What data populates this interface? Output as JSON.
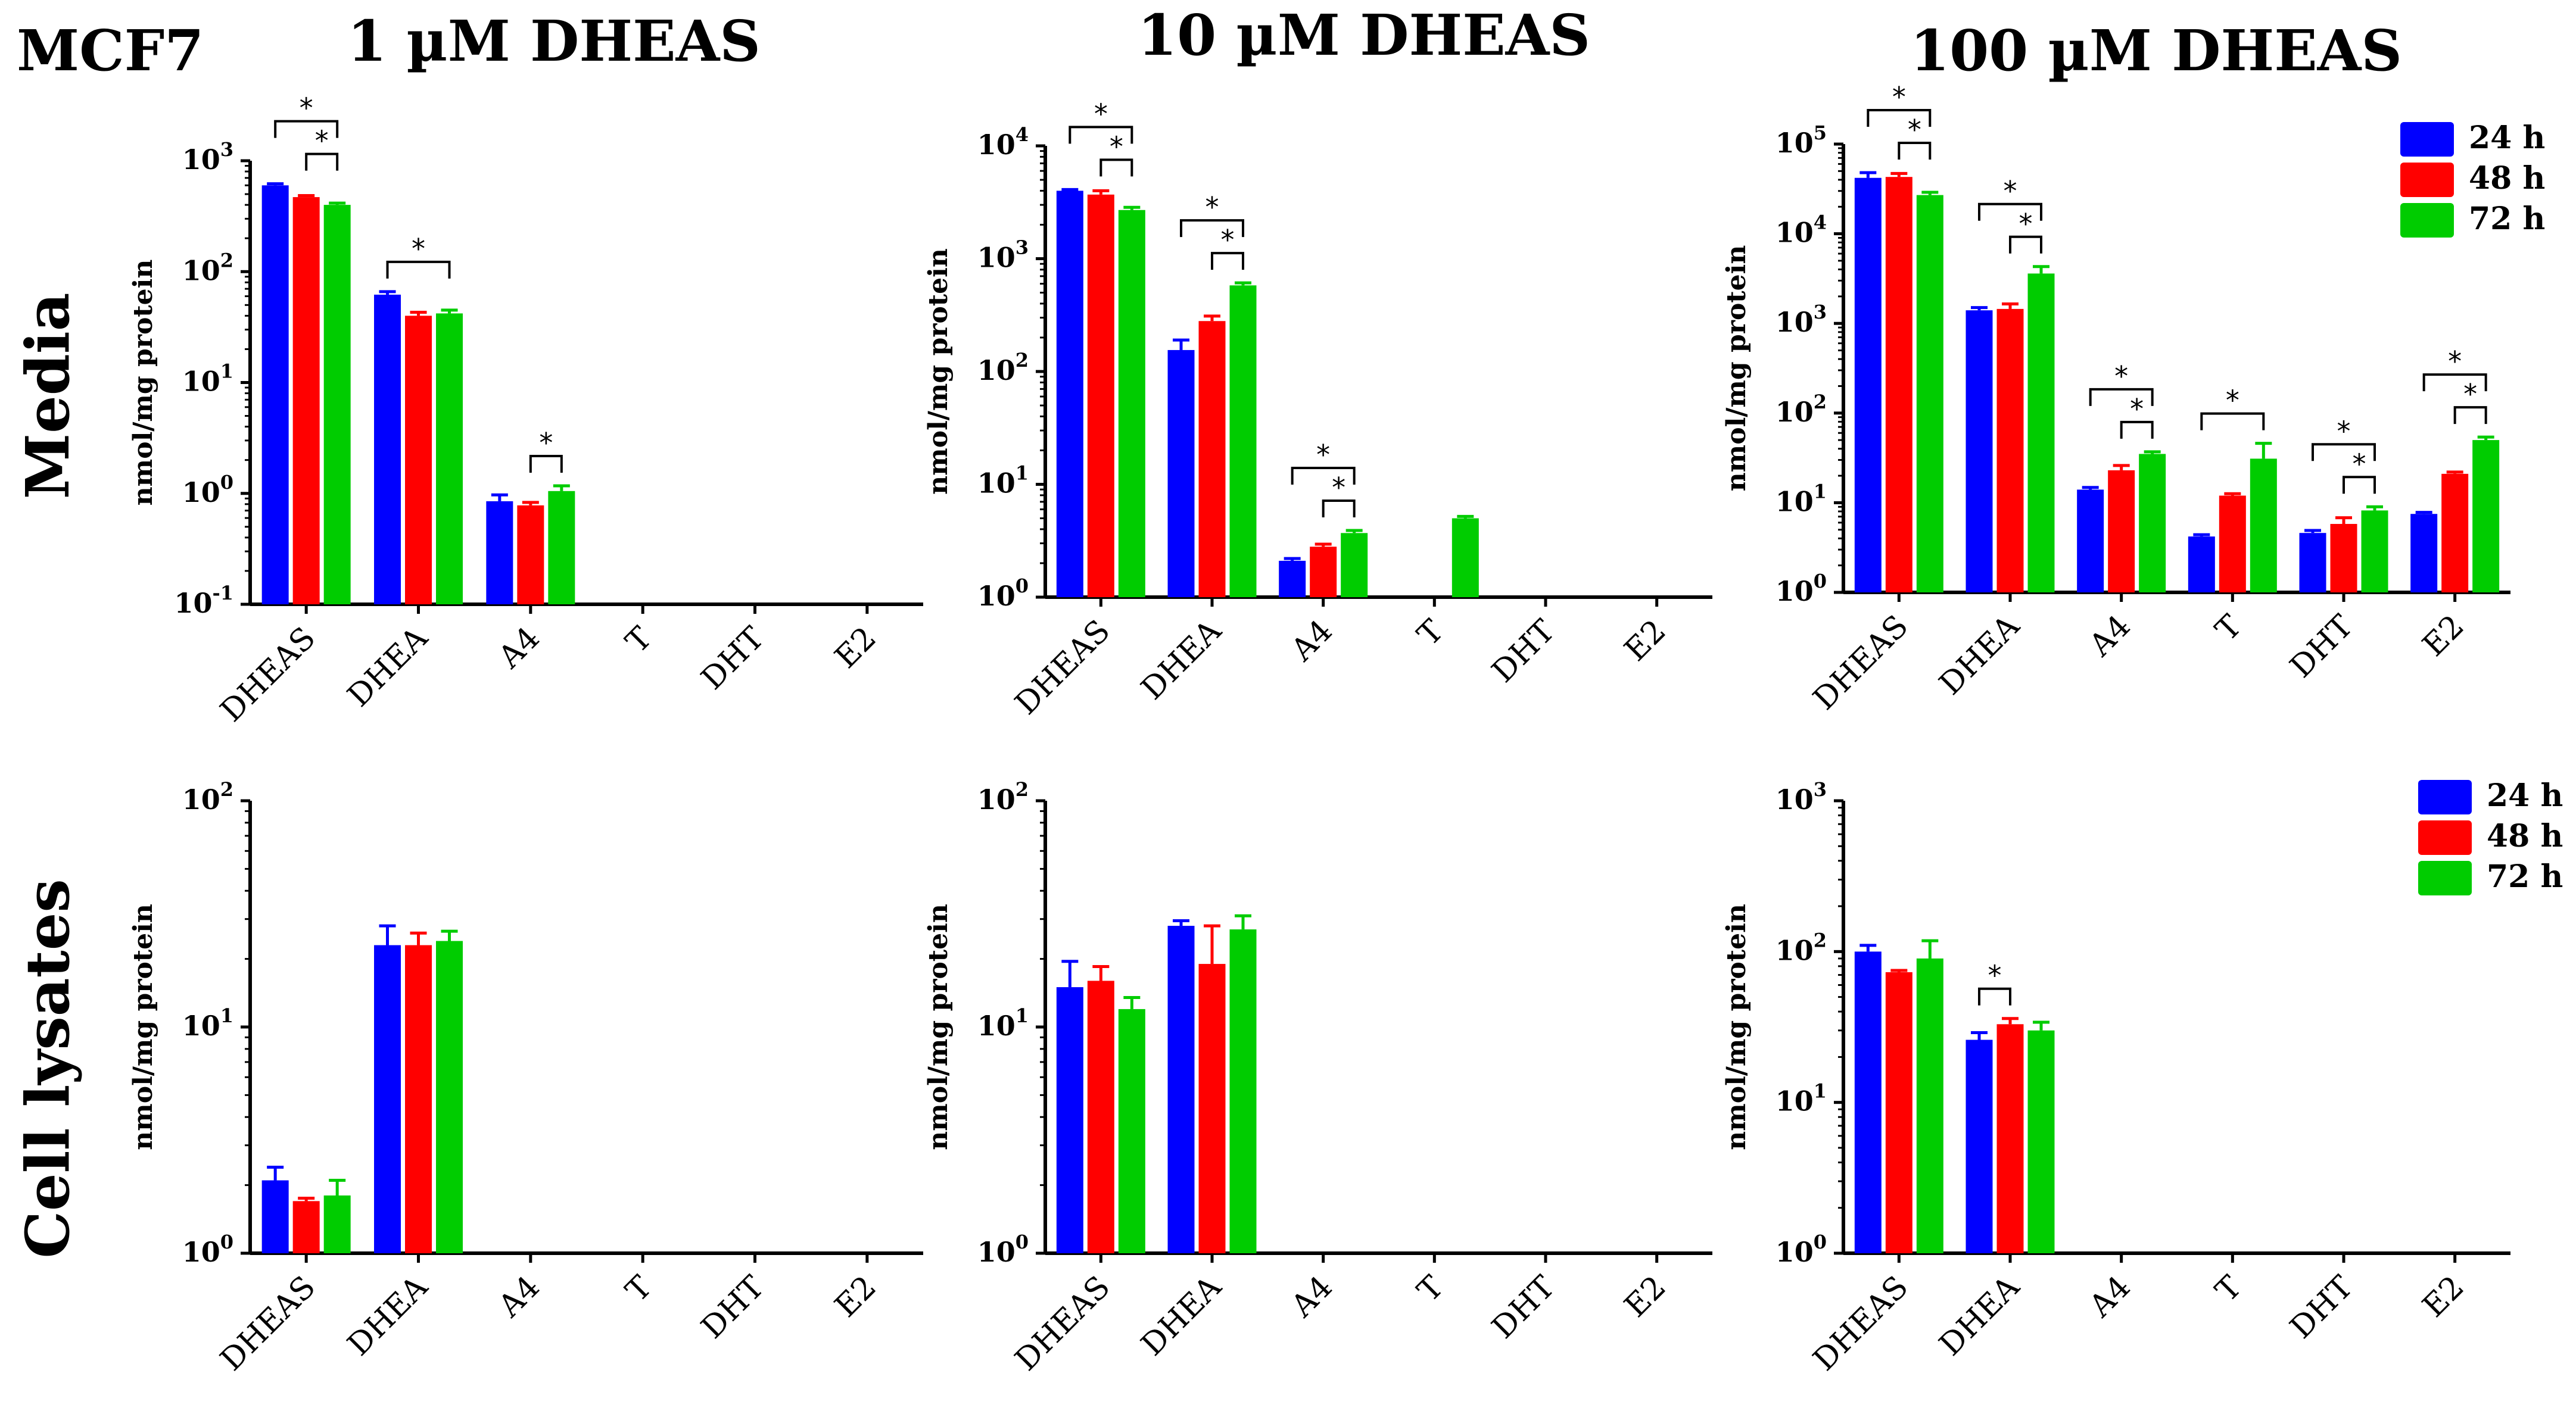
{
  "figure": {
    "cell_line": "MCF7",
    "row_labels": [
      "Media",
      "Cell lysates"
    ],
    "legend": [
      {
        "label": "24 h",
        "color": "#0000ff"
      },
      {
        "label": "48 h",
        "color": "#ff0000"
      },
      {
        "label": "72 h",
        "color": "#00cc00"
      }
    ]
  },
  "chart_data": [
    {
      "type": "bar",
      "title": "1 µM  DHEAS",
      "row": "Media",
      "ylabel": "nmol/mg protein",
      "yscale": "log",
      "ylim": [
        0.1,
        1000
      ],
      "yticks": [
        {
          "b": "10",
          "e": "-1"
        },
        {
          "b": "10",
          "e": "0"
        },
        {
          "b": "10",
          "e": "1"
        },
        {
          "b": "10",
          "e": "2"
        },
        {
          "b": "10",
          "e": "3"
        }
      ],
      "categories": [
        "DHEAS",
        "DHEA",
        "A4",
        "T",
        "DHT",
        "E2"
      ],
      "series": [
        {
          "name": "24 h",
          "values": [
            600,
            62,
            0.85,
            null,
            null,
            null
          ],
          "errors": [
            20,
            4,
            0.12,
            null,
            null,
            null
          ]
        },
        {
          "name": "48 h",
          "values": [
            470,
            40,
            0.78,
            null,
            null,
            null
          ],
          "errors": [
            15,
            3,
            0.05,
            null,
            null,
            null
          ]
        },
        {
          "name": "72 h",
          "values": [
            400,
            42,
            1.05,
            null,
            null,
            null
          ],
          "errors": [
            15,
            3,
            0.12,
            null,
            null,
            null
          ]
        }
      ],
      "significance": [
        {
          "category": 0,
          "from": 0,
          "to": 2,
          "label": "*"
        },
        {
          "category": 0,
          "from": 1,
          "to": 2,
          "label": "*"
        },
        {
          "category": 1,
          "from": 0,
          "to": 2,
          "label": "*"
        },
        {
          "category": 2,
          "from": 1,
          "to": 2,
          "label": "*"
        }
      ],
      "legend": false
    },
    {
      "type": "bar",
      "title": "10 µM  DHEAS",
      "row": "Media",
      "ylabel": "nmol/mg protein",
      "yscale": "log",
      "ylim": [
        1,
        10000
      ],
      "yticks": [
        {
          "b": "10",
          "e": "0"
        },
        {
          "b": "10",
          "e": "1"
        },
        {
          "b": "10",
          "e": "2"
        },
        {
          "b": "10",
          "e": "3"
        },
        {
          "b": "10",
          "e": "4"
        }
      ],
      "categories": [
        "DHEAS",
        "DHEA",
        "A4",
        "T",
        "DHT",
        "E2"
      ],
      "series": [
        {
          "name": "24 h",
          "values": [
            4000,
            155,
            2.1,
            null,
            null,
            null
          ],
          "errors": [
            100,
            35,
            0.1,
            null,
            null,
            null
          ]
        },
        {
          "name": "48 h",
          "values": [
            3700,
            280,
            2.8,
            null,
            null,
            null
          ],
          "errors": [
            300,
            30,
            0.15,
            null,
            null,
            null
          ]
        },
        {
          "name": "72 h",
          "values": [
            2700,
            580,
            3.7,
            5.0,
            null,
            null
          ],
          "errors": [
            150,
            30,
            0.2,
            0.2,
            null,
            null
          ]
        }
      ],
      "significance": [
        {
          "category": 0,
          "from": 0,
          "to": 2,
          "label": "*"
        },
        {
          "category": 0,
          "from": 1,
          "to": 2,
          "label": "*"
        },
        {
          "category": 1,
          "from": 0,
          "to": 2,
          "label": "*"
        },
        {
          "category": 1,
          "from": 1,
          "to": 2,
          "label": "*"
        },
        {
          "category": 2,
          "from": 0,
          "to": 2,
          "label": "*"
        },
        {
          "category": 2,
          "from": 1,
          "to": 2,
          "label": "*"
        }
      ],
      "legend": false
    },
    {
      "type": "bar",
      "title": "100 µM  DHEAS",
      "row": "Media",
      "ylabel": "nmol/mg protein",
      "yscale": "log",
      "ylim": [
        1,
        100000
      ],
      "yticks": [
        {
          "b": "10",
          "e": "0"
        },
        {
          "b": "10",
          "e": "1"
        },
        {
          "b": "10",
          "e": "2"
        },
        {
          "b": "10",
          "e": "3"
        },
        {
          "b": "10",
          "e": "4"
        },
        {
          "b": "10",
          "e": "5"
        }
      ],
      "categories": [
        "DHEAS",
        "DHEA",
        "A4",
        "T",
        "DHT",
        "E2"
      ],
      "series": [
        {
          "name": "24 h",
          "values": [
            42000,
            1400,
            14,
            4.2,
            4.6,
            7.5
          ],
          "errors": [
            6000,
            100,
            0.8,
            0.2,
            0.3,
            0.3
          ]
        },
        {
          "name": "48 h",
          "values": [
            43000,
            1450,
            23,
            12,
            5.8,
            21
          ],
          "errors": [
            4000,
            200,
            3,
            0.6,
            1.0,
            1.0
          ]
        },
        {
          "name": "72 h",
          "values": [
            27000,
            3600,
            35,
            31,
            8.2,
            50
          ],
          "errors": [
            2000,
            700,
            2,
            15,
            0.8,
            4
          ]
        }
      ],
      "significance": [
        {
          "category": 0,
          "from": 0,
          "to": 2,
          "label": "*"
        },
        {
          "category": 0,
          "from": 1,
          "to": 2,
          "label": "*"
        },
        {
          "category": 1,
          "from": 0,
          "to": 2,
          "label": "*"
        },
        {
          "category": 1,
          "from": 1,
          "to": 2,
          "label": "*"
        },
        {
          "category": 2,
          "from": 0,
          "to": 2,
          "label": "*"
        },
        {
          "category": 2,
          "from": 1,
          "to": 2,
          "label": "*"
        },
        {
          "category": 3,
          "from": 0,
          "to": 2,
          "label": "*"
        },
        {
          "category": 4,
          "from": 0,
          "to": 2,
          "label": "*"
        },
        {
          "category": 4,
          "from": 1,
          "to": 2,
          "label": "*"
        },
        {
          "category": 5,
          "from": 0,
          "to": 2,
          "label": "*"
        },
        {
          "category": 5,
          "from": 1,
          "to": 2,
          "label": "*"
        }
      ],
      "legend": true
    },
    {
      "type": "bar",
      "title": "",
      "row": "Cell lysates",
      "ylabel": "nmol/mg protein",
      "yscale": "log",
      "ylim": [
        1,
        100
      ],
      "yticks": [
        {
          "b": "10",
          "e": "0"
        },
        {
          "b": "10",
          "e": "1"
        },
        {
          "b": "10",
          "e": "2"
        }
      ],
      "categories": [
        "DHEAS",
        "DHEA",
        "A4",
        "T",
        "DHT",
        "E2"
      ],
      "series": [
        {
          "name": "24 h",
          "values": [
            2.1,
            23,
            null,
            null,
            null,
            null
          ],
          "errors": [
            0.3,
            5,
            null,
            null,
            null,
            null
          ]
        },
        {
          "name": "48 h",
          "values": [
            1.7,
            23,
            null,
            null,
            null,
            null
          ],
          "errors": [
            0.05,
            3,
            null,
            null,
            null,
            null
          ]
        },
        {
          "name": "72 h",
          "values": [
            1.8,
            24,
            null,
            null,
            null,
            null
          ],
          "errors": [
            0.3,
            2.5,
            null,
            null,
            null,
            null
          ]
        }
      ],
      "significance": [],
      "legend": false
    },
    {
      "type": "bar",
      "title": "",
      "row": "Cell lysates",
      "ylabel": "nmol/mg protein",
      "yscale": "log",
      "ylim": [
        1,
        100
      ],
      "yticks": [
        {
          "b": "10",
          "e": "0"
        },
        {
          "b": "10",
          "e": "1"
        },
        {
          "b": "10",
          "e": "2"
        }
      ],
      "categories": [
        "DHEAS",
        "DHEA",
        "A4",
        "T",
        "DHT",
        "E2"
      ],
      "series": [
        {
          "name": "24 h",
          "values": [
            15,
            28,
            null,
            null,
            null,
            null
          ],
          "errors": [
            4.5,
            1.5,
            null,
            null,
            null,
            null
          ]
        },
        {
          "name": "48 h",
          "values": [
            16,
            19,
            null,
            null,
            null,
            null
          ],
          "errors": [
            2.5,
            9,
            null,
            null,
            null,
            null
          ]
        },
        {
          "name": "72 h",
          "values": [
            12,
            27,
            null,
            null,
            null,
            null
          ],
          "errors": [
            1.5,
            4,
            null,
            null,
            null,
            null
          ]
        }
      ],
      "significance": [],
      "legend": false
    },
    {
      "type": "bar",
      "title": "",
      "row": "Cell lysates",
      "ylabel": "nmol/mg protein",
      "yscale": "log",
      "ylim": [
        1,
        1000
      ],
      "yticks": [
        {
          "b": "10",
          "e": "0"
        },
        {
          "b": "10",
          "e": "1"
        },
        {
          "b": "10",
          "e": "2"
        },
        {
          "b": "10",
          "e": "3"
        }
      ],
      "categories": [
        "DHEAS",
        "DHEA",
        "A4",
        "T",
        "DHT",
        "E2"
      ],
      "series": [
        {
          "name": "24 h",
          "values": [
            100,
            26,
            null,
            null,
            null,
            null
          ],
          "errors": [
            10,
            3,
            null,
            null,
            null,
            null
          ]
        },
        {
          "name": "48 h",
          "values": [
            73,
            33,
            null,
            null,
            null,
            null
          ],
          "errors": [
            2,
            3,
            null,
            null,
            null,
            null
          ]
        },
        {
          "name": "72 h",
          "values": [
            90,
            30,
            null,
            null,
            null,
            null
          ],
          "errors": [
            28,
            4,
            null,
            null,
            null,
            null
          ]
        }
      ],
      "significance": [
        {
          "category": 1,
          "from": 0,
          "to": 1,
          "label": "*"
        }
      ],
      "legend": true
    }
  ]
}
